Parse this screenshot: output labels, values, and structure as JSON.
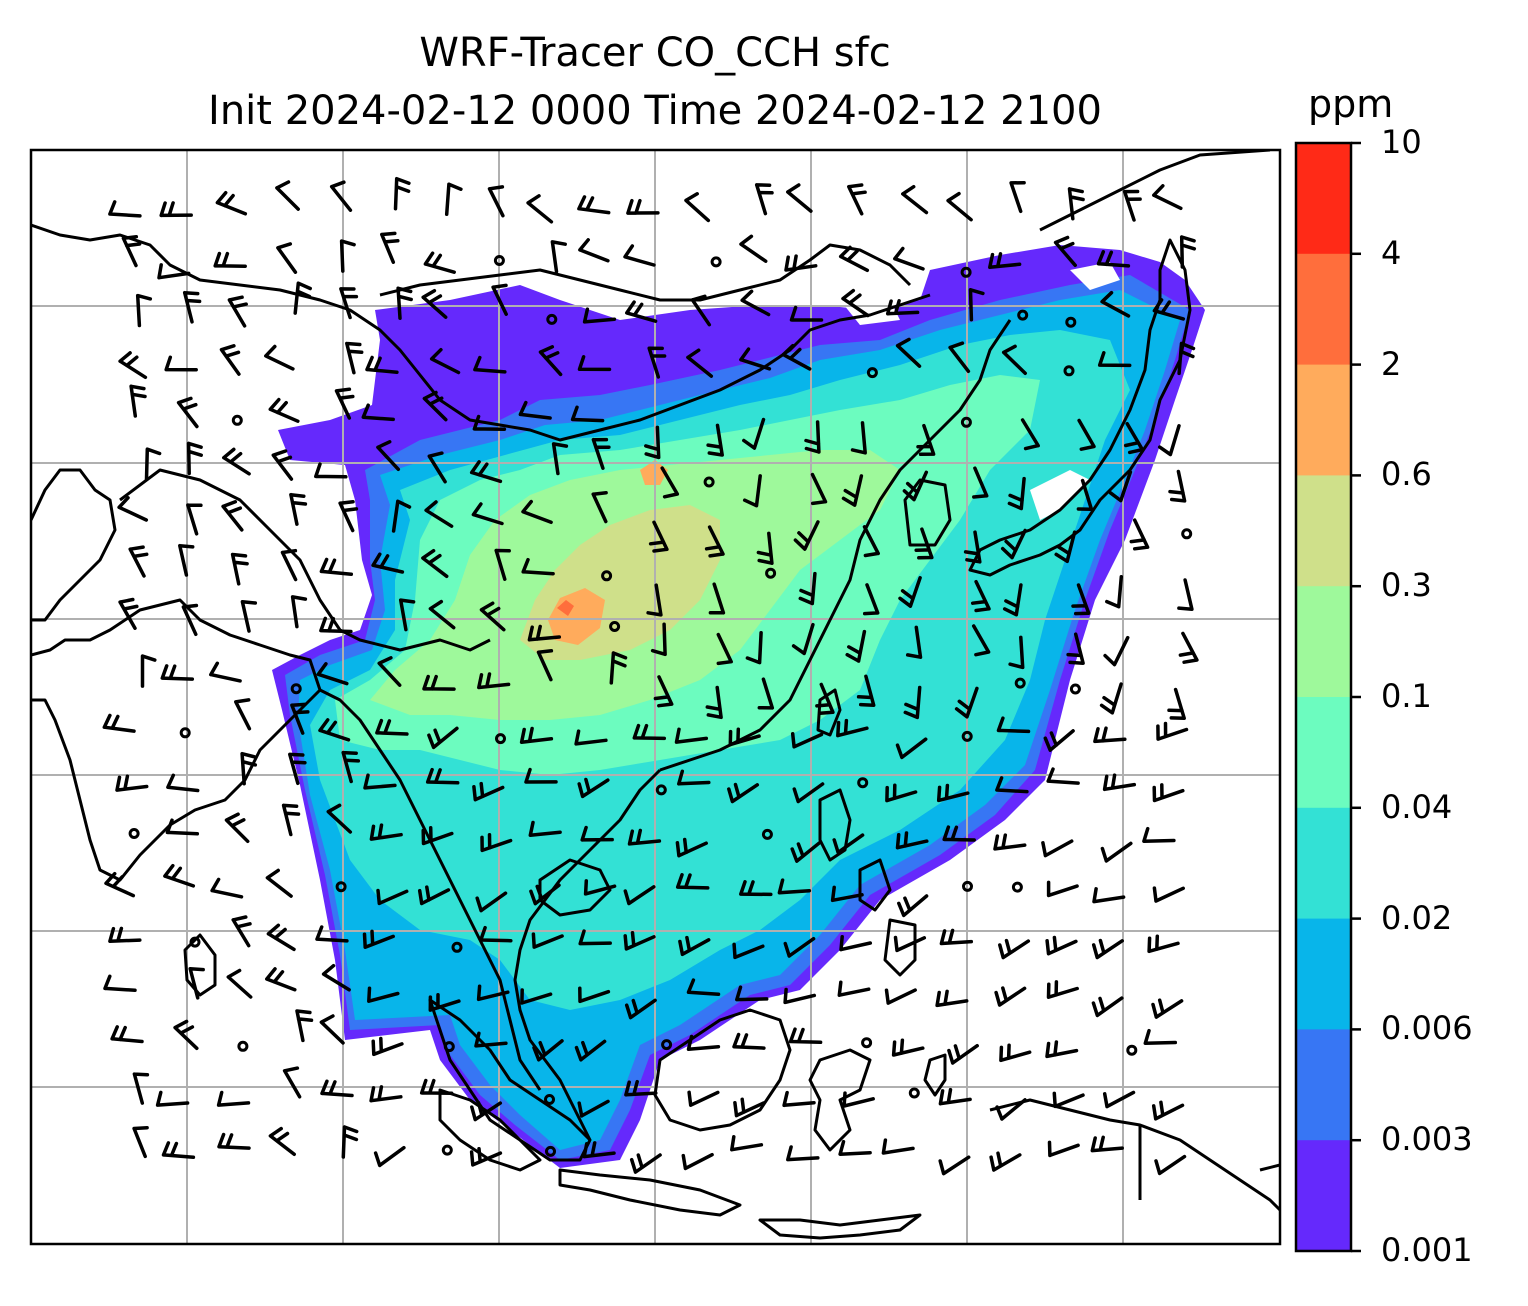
{
  "title": {
    "line1": "WRF-Tracer CO_CCH sfc",
    "line2": "Init 2024-02-12 0000 Time 2024-02-12 2100"
  },
  "colorbar": {
    "unit": "ppm",
    "ticks": [
      "10",
      "4",
      "2",
      "0.6",
      "0.3",
      "0.1",
      "0.04",
      "0.02",
      "0.006",
      "0.003",
      "0.001"
    ],
    "colors": [
      "#ff2a17",
      "#ff6e3c",
      "#ffab5c",
      "#cfe08a",
      "#9ef99b",
      "#6cfcbf",
      "#33e1d5",
      "#08b5ea",
      "#3776f4",
      "#6529fc"
    ]
  },
  "map": {
    "background": "#ffffff",
    "gridline_color": "#b0b0b0",
    "coastline_color": "#000000",
    "barb_color": "#000000"
  }
}
